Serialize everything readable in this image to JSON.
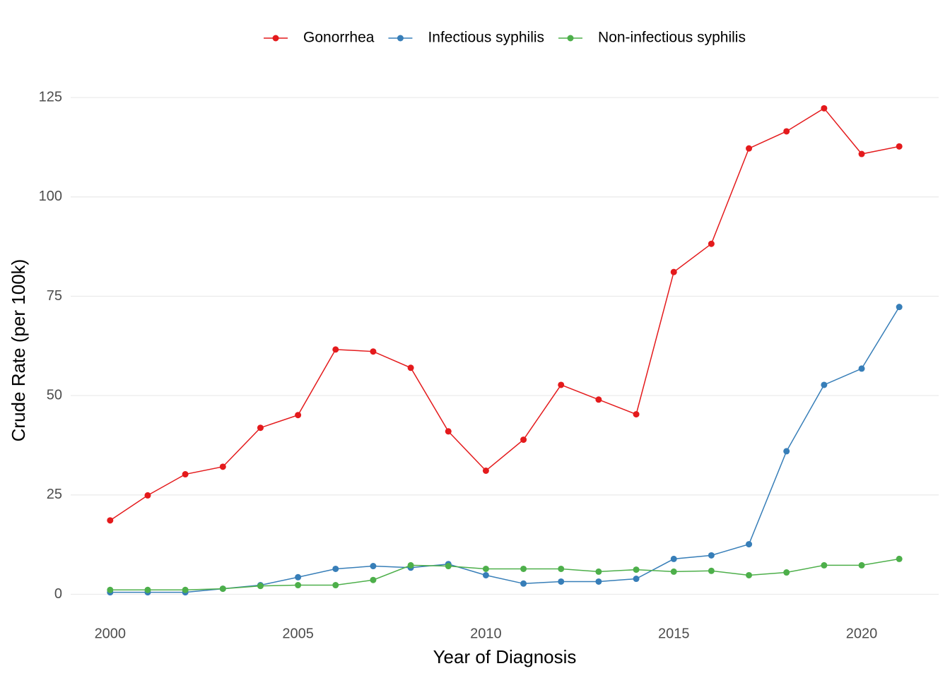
{
  "chart_data": {
    "type": "line",
    "x_label": "Year of Diagnosis",
    "y_label": "Crude Rate (per 100k)",
    "x": [
      2000,
      2001,
      2002,
      2003,
      2004,
      2005,
      2006,
      2007,
      2008,
      2009,
      2010,
      2011,
      2012,
      2013,
      2014,
      2015,
      2016,
      2017,
      2018,
      2019,
      2020,
      2021
    ],
    "series": [
      {
        "name": "Gonorrhea",
        "color": "#e41a1c",
        "values": [
          18.6,
          24.9,
          30.2,
          32.1,
          41.9,
          45.1,
          61.6,
          61.1,
          57.0,
          41.0,
          31.1,
          38.9,
          52.7,
          49.0,
          45.3,
          81.1,
          88.2,
          112.2,
          116.5,
          122.3,
          110.8,
          112.7
        ]
      },
      {
        "name": "Infectious syphilis",
        "color": "#377eb8",
        "values": [
          0.5,
          0.5,
          0.5,
          1.4,
          2.3,
          4.3,
          6.4,
          7.1,
          6.7,
          7.6,
          4.8,
          2.7,
          3.2,
          3.2,
          3.9,
          8.9,
          9.8,
          12.6,
          36.0,
          52.7,
          56.8,
          72.3
        ]
      },
      {
        "name": "Non-infectious syphilis",
        "color": "#4daf4a",
        "values": [
          1.1,
          1.1,
          1.1,
          1.4,
          2.1,
          2.3,
          2.3,
          3.6,
          7.3,
          7.1,
          6.4,
          6.4,
          6.4,
          5.7,
          6.2,
          5.7,
          5.9,
          4.8,
          5.5,
          7.3,
          7.3,
          8.9
        ]
      }
    ],
    "xlim": [
      1998.95,
      2022.05
    ],
    "xticks": [
      2000,
      2005,
      2010,
      2015,
      2020
    ],
    "ylim": [
      -5.6,
      128.4
    ],
    "yticks": [
      0,
      25,
      50,
      75,
      100,
      125
    ],
    "grid": true,
    "legend_position": "top"
  }
}
